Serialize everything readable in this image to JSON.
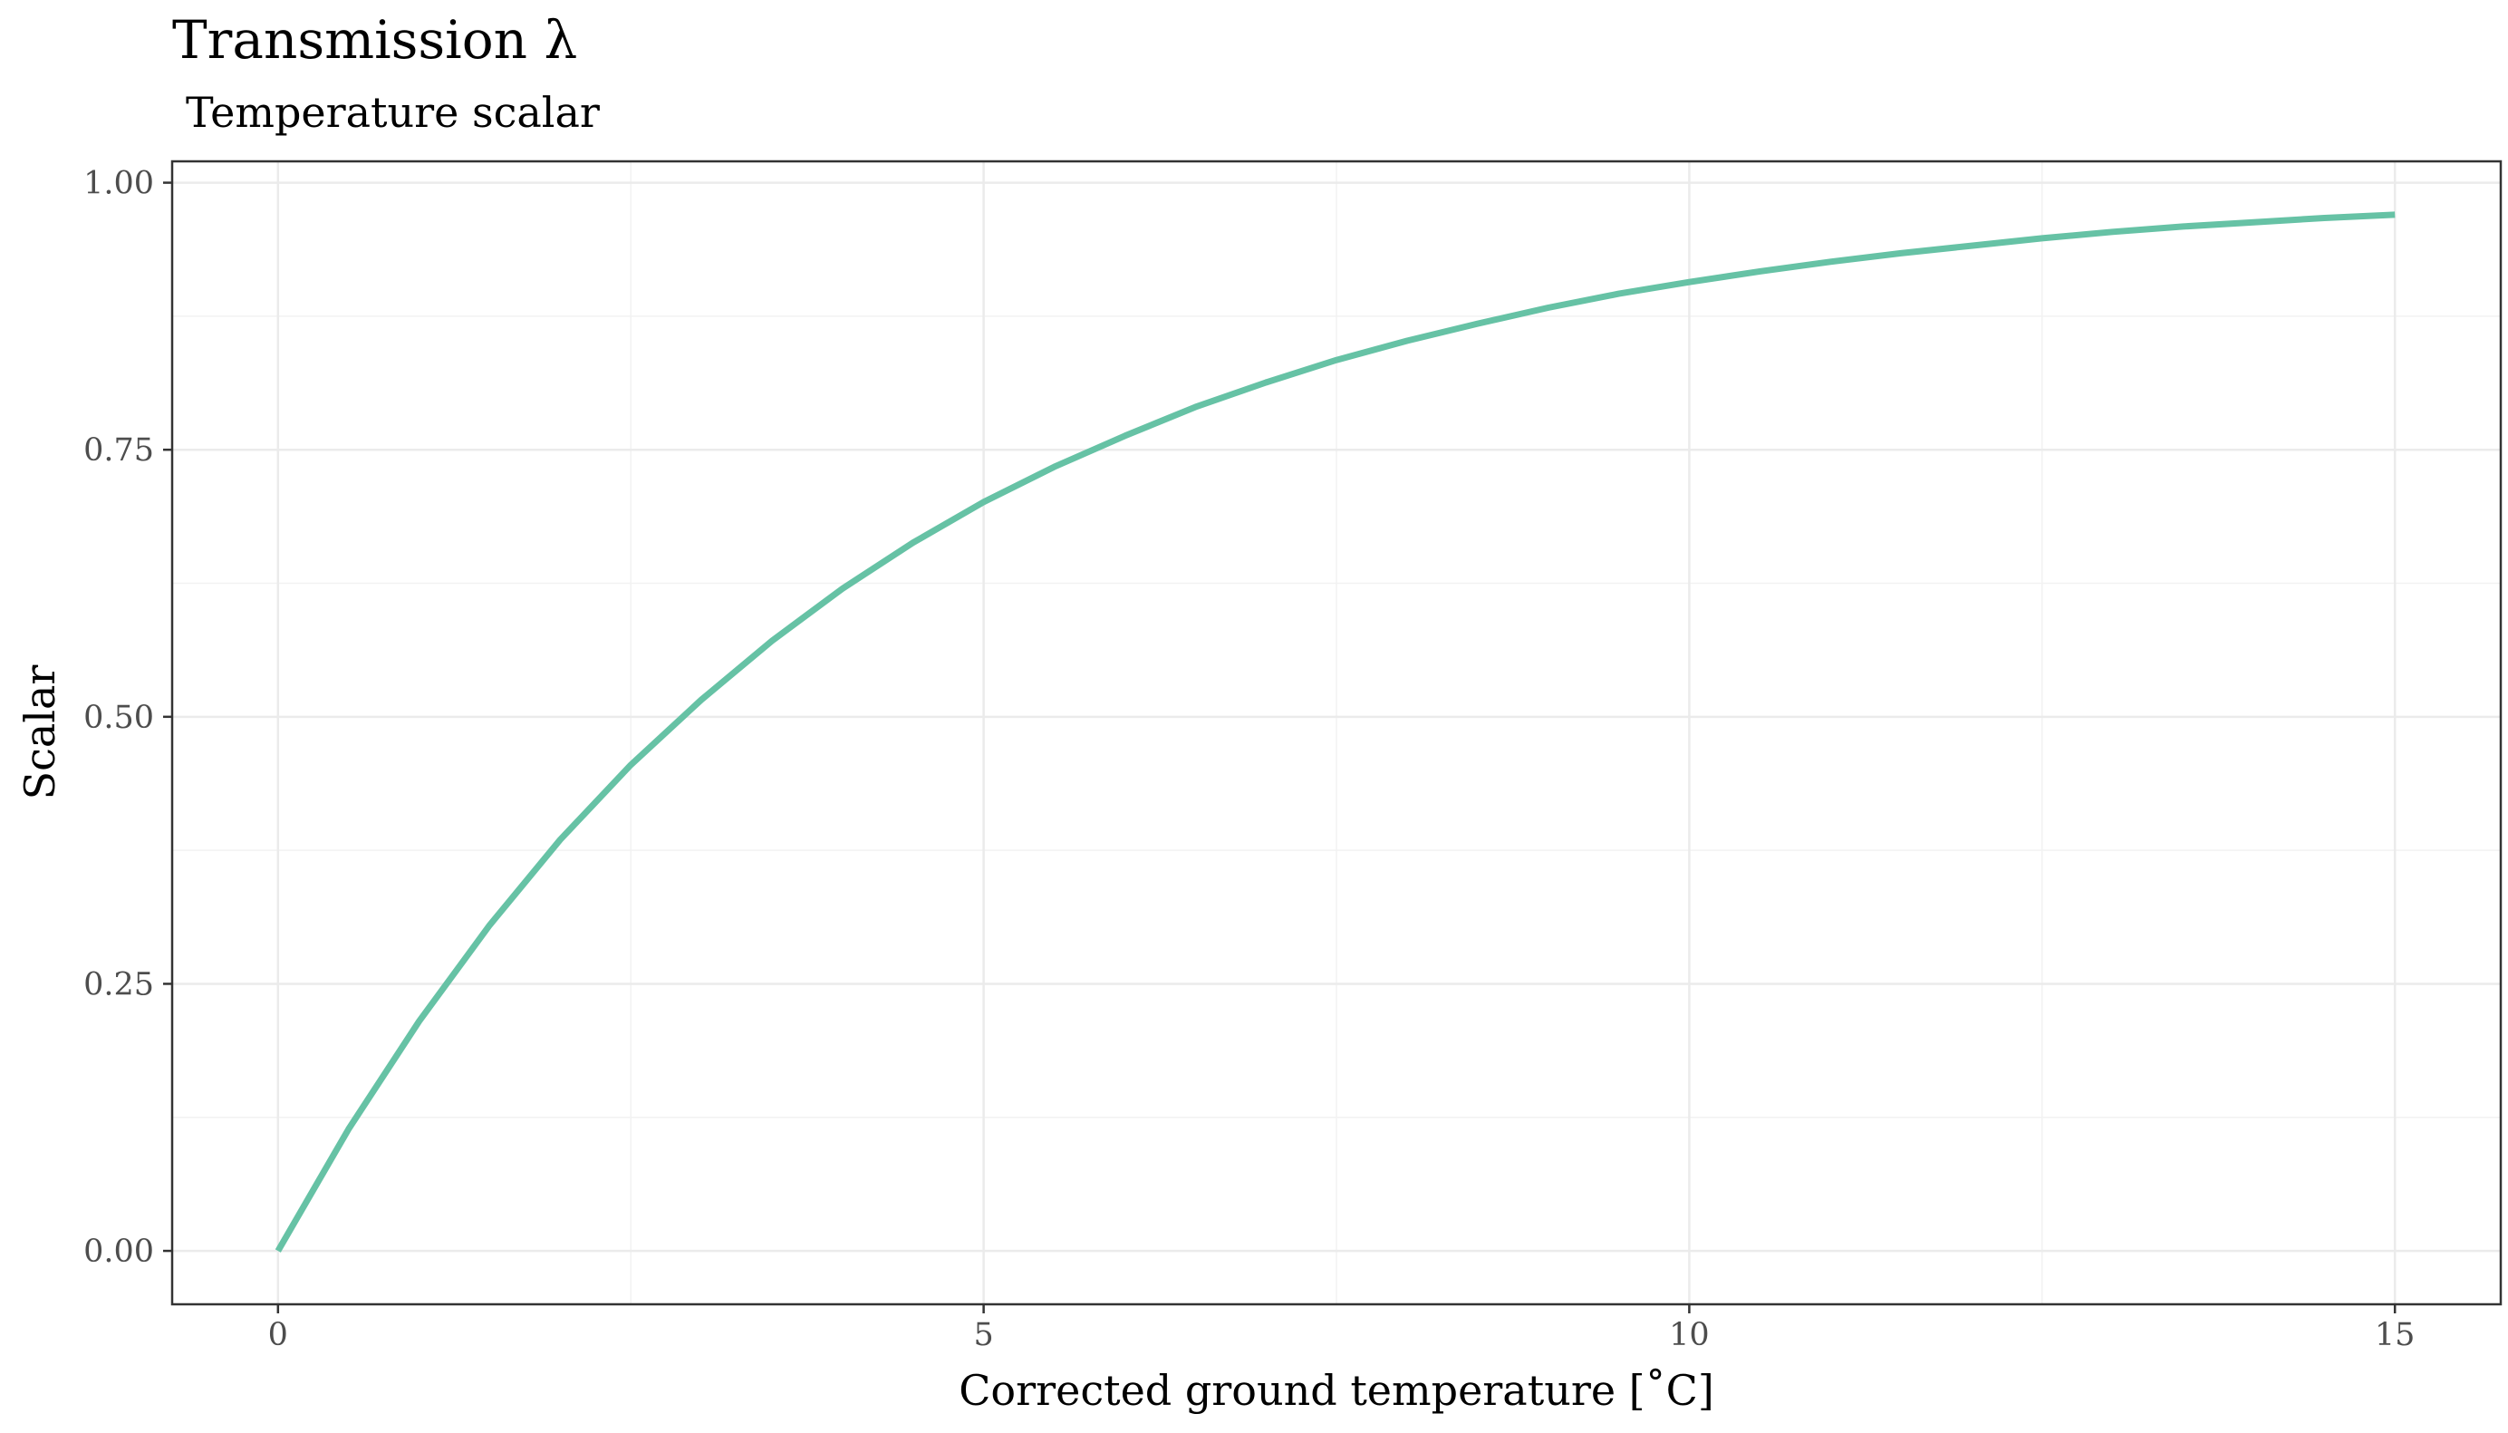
{
  "chart_data": {
    "type": "line",
    "title": "Transmission λ",
    "subtitle": "Temperature scalar",
    "xlabel": "Corrected ground temperature [˚C]",
    "ylabel": "Scalar",
    "xlim": [
      -0.75,
      15.75
    ],
    "ylim": [
      -0.05,
      1.02
    ],
    "x_ticks": [
      0,
      5,
      10,
      15
    ],
    "x_tick_labels": [
      "0",
      "5",
      "10",
      "15"
    ],
    "x_minor_ticks": [
      2.5,
      7.5,
      12.5
    ],
    "y_ticks": [
      0,
      0.25,
      0.5,
      0.75,
      1.0
    ],
    "y_tick_labels": [
      "0.00",
      "0.25",
      "0.50",
      "0.75",
      "1.00"
    ],
    "y_minor_ticks": [
      0.125,
      0.375,
      0.625,
      0.875
    ],
    "grid": true,
    "legend": "none",
    "line_color": "#66c2a5",
    "series": [
      {
        "x": [
          0,
          0.5,
          1,
          1.5,
          2,
          2.5,
          3,
          3.5,
          4,
          4.5,
          5,
          5.5,
          6,
          6.5,
          7,
          7.5,
          8,
          8.5,
          9,
          9.5,
          10,
          10.5,
          11,
          11.5,
          12,
          12.5,
          13,
          13.5,
          14,
          14.5,
          15
        ],
        "values": [
          0.0,
          0.114,
          0.215,
          0.305,
          0.385,
          0.455,
          0.516,
          0.571,
          0.62,
          0.663,
          0.701,
          0.734,
          0.763,
          0.79,
          0.813,
          0.834,
          0.852,
          0.868,
          0.883,
          0.896,
          0.907,
          0.917,
          0.926,
          0.934,
          0.941,
          0.948,
          0.954,
          0.959,
          0.963,
          0.967,
          0.97
        ]
      }
    ]
  }
}
